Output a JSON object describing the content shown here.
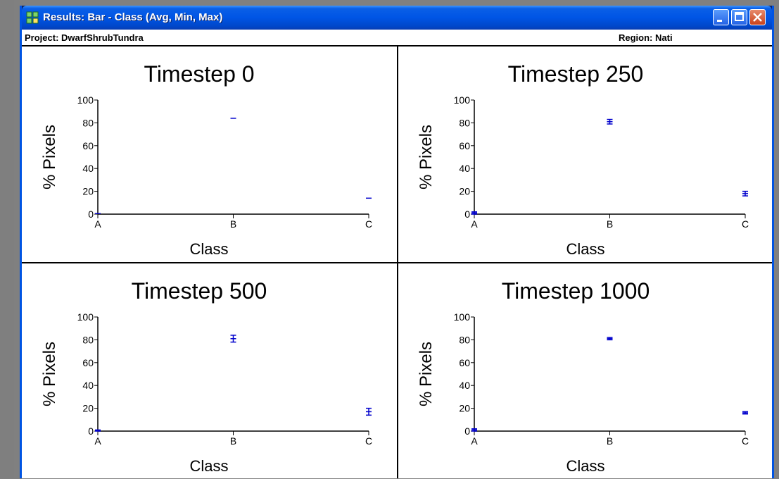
{
  "window": {
    "title": "Results: Bar - Class (Avg, Min, Max)",
    "project": "Project: DwarfShrubTundra",
    "region": "Region: Nati"
  },
  "colors": {
    "series": "#0000cc",
    "axis": "#000000",
    "titlebar": "#0055e5"
  },
  "chart_data": [
    {
      "type": "bar",
      "title": "Timestep 0",
      "xlabel": "Class",
      "ylabel": "% Pixels",
      "categories": [
        "A",
        "B",
        "C"
      ],
      "yticks": [
        "0",
        "20",
        "40",
        "60",
        "80",
        "100"
      ],
      "ylim": [
        0,
        100
      ],
      "grid": false,
      "series": [
        {
          "avg": [
            0.5,
            84,
            14
          ],
          "min": [
            0.5,
            84,
            14
          ],
          "max": [
            0.5,
            84,
            14
          ]
        }
      ]
    },
    {
      "type": "bar",
      "title": "Timestep 250",
      "xlabel": "Class",
      "ylabel": "% Pixels",
      "categories": [
        "A",
        "B",
        "C"
      ],
      "yticks": [
        "0",
        "20",
        "40",
        "60",
        "80",
        "100"
      ],
      "ylim": [
        0,
        100
      ],
      "grid": false,
      "series": [
        {
          "avg": [
            1,
            81,
            18
          ],
          "min": [
            0,
            79,
            16
          ],
          "max": [
            2,
            83,
            20
          ]
        }
      ]
    },
    {
      "type": "bar",
      "title": "Timestep 500",
      "xlabel": "Class",
      "ylabel": "% Pixels",
      "categories": [
        "A",
        "B",
        "C"
      ],
      "yticks": [
        "0",
        "20",
        "40",
        "60",
        "80",
        "100"
      ],
      "ylim": [
        0,
        100
      ],
      "grid": false,
      "series": [
        {
          "avg": [
            0.5,
            81,
            17
          ],
          "min": [
            0,
            78,
            14
          ],
          "max": [
            1,
            84,
            20
          ]
        }
      ]
    },
    {
      "type": "bar",
      "title": "Timestep 1000",
      "xlabel": "Class",
      "ylabel": "% Pixels",
      "categories": [
        "A",
        "B",
        "C"
      ],
      "yticks": [
        "0",
        "20",
        "40",
        "60",
        "80",
        "100"
      ],
      "ylim": [
        0,
        100
      ],
      "grid": false,
      "series": [
        {
          "avg": [
            1,
            81,
            16
          ],
          "min": [
            0,
            80,
            15
          ],
          "max": [
            2,
            82,
            17
          ]
        }
      ]
    }
  ]
}
